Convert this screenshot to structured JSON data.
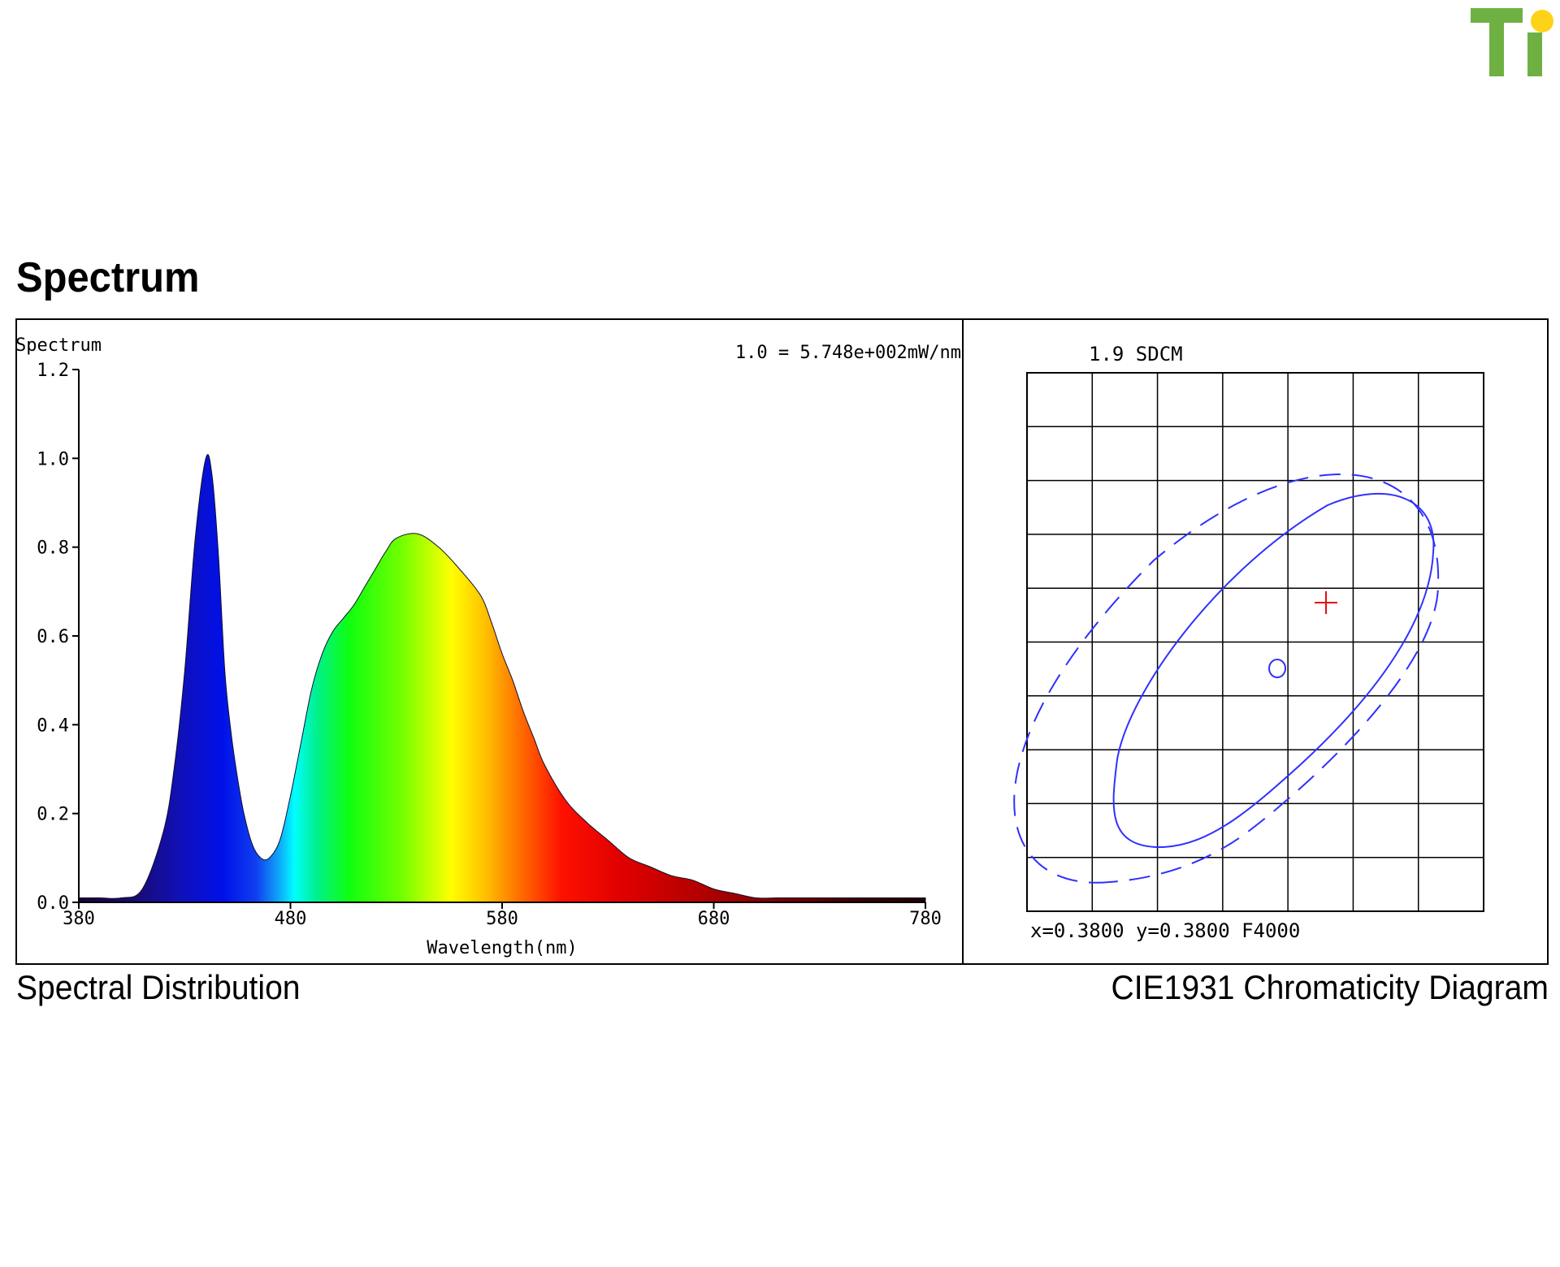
{
  "logo": {
    "text": "Ti",
    "green": "#6fb043",
    "yellow": "#ffd21a"
  },
  "section_title": "Spectrum",
  "captions": {
    "left": "Spectral Distribution",
    "right": "CIE1931 Chromaticity Diagram"
  },
  "chart_data": [
    {
      "type": "area",
      "title": "Spectrum",
      "xlabel": "Wavelength(nm)",
      "ylabel": "",
      "annotation": "1.0 = 5.748e+002mW/nm",
      "xlim": [
        380,
        780
      ],
      "ylim": [
        0,
        1.2
      ],
      "x_ticks": [
        380,
        480,
        580,
        680,
        780
      ],
      "y_ticks": [
        0.0,
        0.2,
        0.4,
        0.6,
        0.8,
        1.0,
        1.2
      ],
      "grid": false,
      "fill": "wavelength-rainbow",
      "series": [
        {
          "x": [
            380,
            390,
            400,
            410,
            420,
            425,
            430,
            435,
            440,
            443,
            446,
            449,
            452,
            455,
            458,
            462,
            466,
            470,
            475,
            480,
            485,
            490,
            495,
            500,
            505,
            510,
            515,
            520,
            525,
            530,
            540,
            550,
            560,
            570,
            575,
            580,
            585,
            590,
            595,
            600,
            610,
            620,
            630,
            640,
            650,
            660,
            670,
            680,
            690,
            700,
            710,
            720,
            730,
            740,
            750,
            760,
            770,
            780
          ],
          "values": [
            0.01,
            0.01,
            0.01,
            0.03,
            0.16,
            0.3,
            0.52,
            0.82,
            1.0,
            0.96,
            0.78,
            0.52,
            0.38,
            0.28,
            0.2,
            0.13,
            0.1,
            0.1,
            0.14,
            0.24,
            0.36,
            0.48,
            0.56,
            0.61,
            0.64,
            0.67,
            0.71,
            0.75,
            0.79,
            0.82,
            0.83,
            0.8,
            0.75,
            0.69,
            0.63,
            0.56,
            0.5,
            0.43,
            0.37,
            0.31,
            0.23,
            0.18,
            0.14,
            0.1,
            0.08,
            0.06,
            0.05,
            0.03,
            0.02,
            0.01,
            0.01,
            0.01,
            0.01,
            0.01,
            0.01,
            0.01,
            0.01,
            0.01
          ]
        }
      ]
    },
    {
      "type": "scatter",
      "title": "1.9 SDCM",
      "xlabel": "x=0.3800 y=0.3800 F4000",
      "grid": true,
      "grid_cols": 7,
      "grid_rows": 10,
      "markers": [
        {
          "name": "measured-point",
          "shape": "plus",
          "color": "#e01010"
        },
        {
          "name": "target-center",
          "shape": "circle",
          "color": "#3030ff"
        }
      ],
      "ellipses": [
        {
          "name": "inner-ellipse",
          "style": "solid",
          "color": "#3030ff"
        },
        {
          "name": "outer-ellipse",
          "style": "dashed",
          "color": "#3030ff"
        }
      ]
    }
  ]
}
